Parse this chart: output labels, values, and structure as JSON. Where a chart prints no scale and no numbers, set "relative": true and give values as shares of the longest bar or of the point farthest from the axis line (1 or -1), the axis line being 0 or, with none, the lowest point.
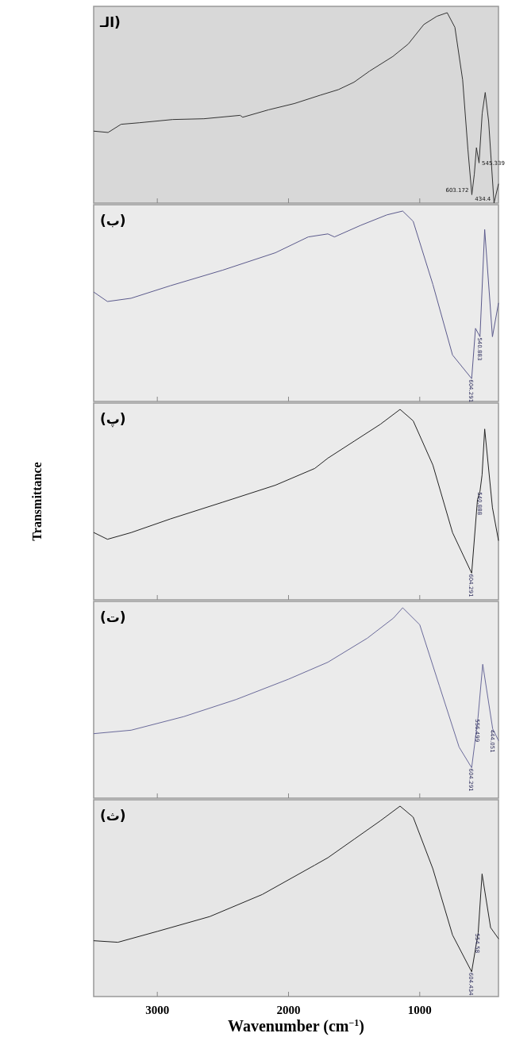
{
  "chart_data": [
    {
      "type": "line",
      "relative": true,
      "title": "(الـ",
      "xlim": [
        3485,
        400
      ],
      "xticks": [
        3000,
        2000,
        1000
      ],
      "tick_labels": false,
      "series": [
        {
          "color": "#333333",
          "x": [
            3483,
            3375,
            3276,
            3138,
            2882,
            2645,
            2369,
            2349,
            2152,
            1955,
            1757,
            1620,
            1501,
            1383,
            1205,
            1087,
            969,
            870,
            791,
            732,
            673,
            633,
            603,
            584,
            568,
            548,
            524,
            501,
            475,
            434,
            400
          ],
          "values": [
            0.378,
            0.371,
            0.414,
            0.422,
            0.439,
            0.443,
            0.461,
            0.451,
            0.49,
            0.523,
            0.567,
            0.596,
            0.635,
            0.693,
            0.77,
            0.836,
            0.938,
            0.981,
            1.0,
            0.923,
            0.647,
            0.283,
            0.044,
            0.153,
            0.291,
            0.211,
            0.472,
            0.581,
            0.429,
            0,
            0.1
          ]
        }
      ],
      "annotations": [
        {
          "text": "603.172",
          "x": 603.172,
          "y": 0.044
        },
        {
          "text": "545.339",
          "x": 545.339,
          "y": 0.211
        },
        {
          "text": "434.4",
          "x": 434.4,
          "y": 0
        }
      ]
    },
    {
      "type": "line",
      "relative": true,
      "title": "(ب)",
      "xlim": [
        3485,
        400
      ],
      "xticks": [
        3000,
        2000,
        1000
      ],
      "tick_labels": false,
      "series": [
        {
          "color": "#5b5a8c",
          "x": [
            3483,
            3380,
            3200,
            2900,
            2500,
            2100,
            1850,
            1700,
            1650,
            1450,
            1250,
            1130,
            1050,
            900,
            750,
            604.291,
            575,
            540.883,
            505,
            446,
            400
          ],
          "values": [
            0.574,
            0.525,
            0.542,
            0.608,
            0.69,
            0.781,
            0.864,
            0.88,
            0.864,
            0.925,
            0.98,
            1.0,
            0.946,
            0.615,
            0.244,
            0.12,
            0.384,
            0.34,
            0.903,
            0.34,
            0.516
          ]
        }
      ],
      "annotations": [
        {
          "text": "604.291",
          "x": 604.291,
          "y": 0.12
        },
        {
          "text": "540.883",
          "x": 540.883,
          "y": 0.34
        }
      ]
    },
    {
      "type": "line",
      "relative": true,
      "title": "(پ)",
      "xlim": [
        3485,
        400
      ],
      "xticks": [
        3000,
        2000,
        1000
      ],
      "tick_labels": false,
      "ylabel": "Transmittance",
      "series": [
        {
          "color": "#222222",
          "x": [
            3483,
            3380,
            3200,
            2900,
            2500,
            2100,
            1800,
            1700,
            1500,
            1300,
            1150,
            1050,
            900,
            750,
            604.291,
            560,
            540.888,
            525,
            505,
            446,
            400
          ],
          "values": [
            0.353,
            0.318,
            0.353,
            0.425,
            0.513,
            0.602,
            0.69,
            0.744,
            0.833,
            0.922,
            1.0,
            0.94,
            0.708,
            0.353,
            0.14,
            0.527,
            0.57,
            0.656,
            0.897,
            0.484,
            0.312
          ]
        }
      ],
      "annotations": [
        {
          "text": "604.291",
          "x": 604.291,
          "y": 0.14
        },
        {
          "text": "540.888",
          "x": 540.888,
          "y": 0.57
        }
      ]
    },
    {
      "type": "line",
      "relative": true,
      "title": "(ت)",
      "xlim": [
        3485,
        400
      ],
      "xticks": [
        3000,
        2000,
        1000
      ],
      "tick_labels": false,
      "series": [
        {
          "color": "#6a6a9a",
          "x": [
            3483,
            3200,
            2800,
            2400,
            2000,
            1700,
            1400,
            1200,
            1130,
            1000,
            850,
            700,
            604.291,
            556.499,
            520,
            444.051,
            400
          ],
          "values": [
            0.339,
            0.357,
            0.428,
            0.518,
            0.625,
            0.714,
            0.84,
            0.946,
            1.0,
            0.911,
            0.589,
            0.268,
            0.16,
            0.42,
            0.703,
            0.364,
            0.303
          ]
        }
      ],
      "annotations": [
        {
          "text": "604.291",
          "x": 604.291,
          "y": 0.16
        },
        {
          "text": "556.499",
          "x": 556.499,
          "y": 0.42
        },
        {
          "text": "444.051",
          "x": 444.051,
          "y": 0.364
        }
      ]
    },
    {
      "type": "line",
      "relative": true,
      "title": "(ث)",
      "xlim": [
        3485,
        400
      ],
      "xticks": [
        3000,
        2000,
        1000
      ],
      "tick_labels": "x",
      "xlabel": "Wavenumber (cm$^{−1}$)",
      "series": [
        {
          "color": "#222222",
          "x": [
            3483,
            3300,
            3000,
            2600,
            2200,
            1800,
            1700,
            1500,
            1300,
            1150,
            1050,
            900,
            750,
            604.434,
            554.58,
            525,
            460,
            400
          ],
          "values": [
            0.293,
            0.285,
            0.342,
            0.42,
            0.536,
            0.69,
            0.729,
            0.826,
            0.923,
            1.0,
            0.942,
            0.671,
            0.323,
            0.13,
            0.335,
            0.644,
            0.362,
            0.304
          ]
        }
      ],
      "annotations": [
        {
          "text": "604.434",
          "x": 604.434,
          "y": 0.13
        },
        {
          "text": "554.58",
          "x": 554.58,
          "y": 0.335
        }
      ]
    }
  ]
}
